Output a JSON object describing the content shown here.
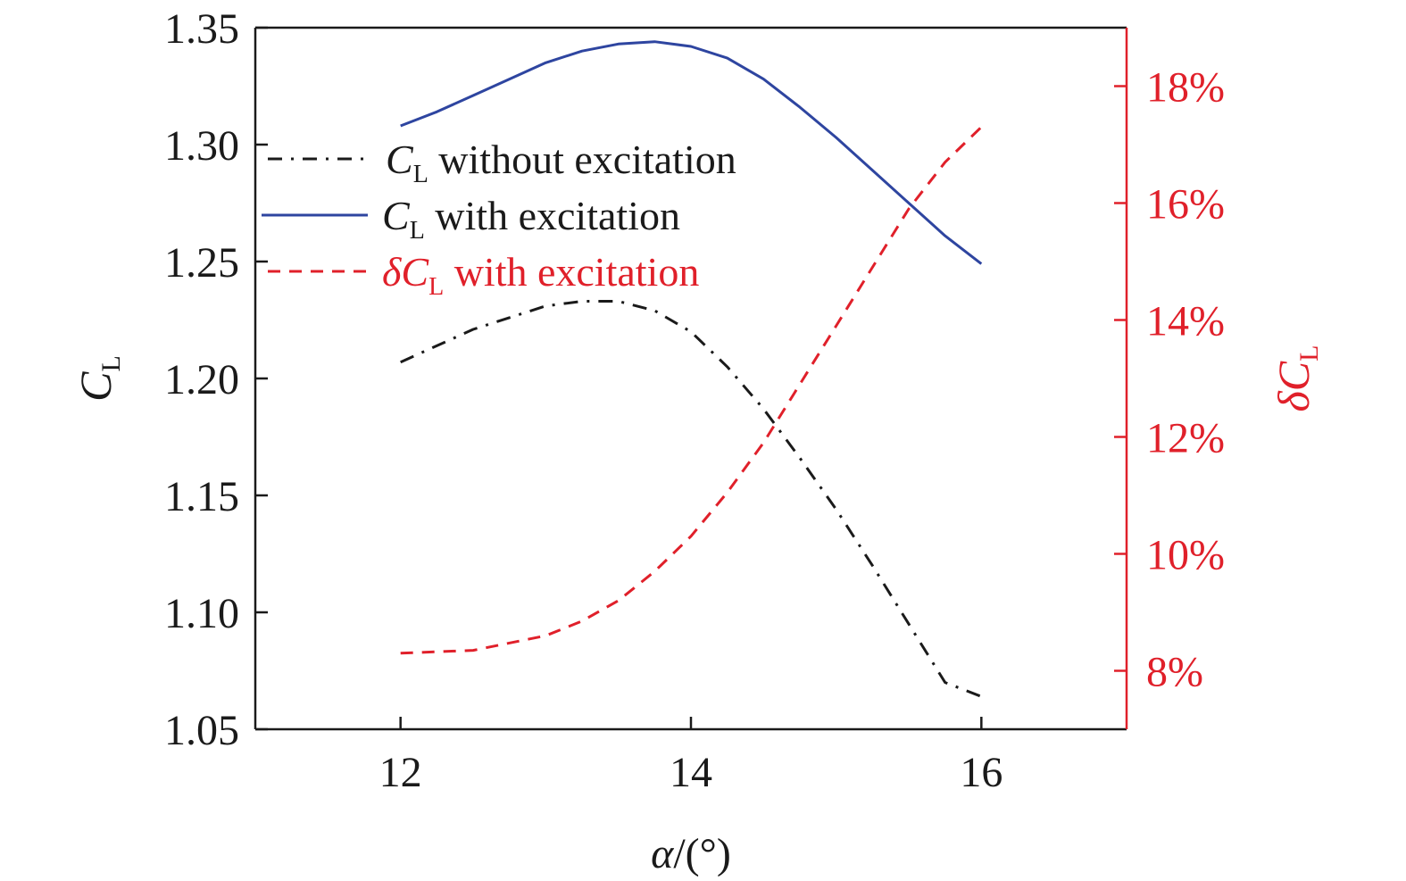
{
  "colors": {
    "axis_left": "#1a1a1a",
    "axis_right": "#e0202a",
    "series_black": "#1a1a1a",
    "series_blue": "#2e45a0",
    "series_red": "#e0202a"
  },
  "chart_data": {
    "type": "line",
    "xlim": [
      11,
      17
    ],
    "ylim_left": [
      1.05,
      1.35
    ],
    "ylim_right": [
      7,
      19
    ],
    "x_ticks": [
      {
        "v": 12,
        "label": "12"
      },
      {
        "v": 14,
        "label": "14"
      },
      {
        "v": 16,
        "label": "16"
      }
    ],
    "y_left_ticks": [
      {
        "v": 1.05,
        "label": "1.05"
      },
      {
        "v": 1.1,
        "label": "1.10"
      },
      {
        "v": 1.15,
        "label": "1.15"
      },
      {
        "v": 1.2,
        "label": "1.20"
      },
      {
        "v": 1.25,
        "label": "1.25"
      },
      {
        "v": 1.3,
        "label": "1.30"
      },
      {
        "v": 1.35,
        "label": "1.35"
      }
    ],
    "y_right_ticks": [
      {
        "v": 8,
        "label": "8%"
      },
      {
        "v": 10,
        "label": "10%"
      },
      {
        "v": 12,
        "label": "12%"
      },
      {
        "v": 14,
        "label": "14%"
      },
      {
        "v": 16,
        "label": "16%"
      },
      {
        "v": 18,
        "label": "18%"
      }
    ],
    "xlabel": {
      "main": "α",
      "rest": "/(°)"
    },
    "ylabel_left": {
      "main": "C",
      "sub": "L"
    },
    "ylabel_right": {
      "prefix": "δ",
      "main": "C",
      "sub": "L"
    },
    "grid": false,
    "legend_position": "top-left",
    "series": [
      {
        "legend_prefix": "",
        "legend_main": "C",
        "legend_sub": "L",
        "legend_rest": " without excitation",
        "axis": "left",
        "style": "dashdot",
        "color": "#1a1a1a",
        "x": [
          12,
          12.5,
          13,
          13.25,
          13.5,
          13.75,
          14,
          14.25,
          14.5,
          14.75,
          15,
          15.25,
          15.5,
          15.75,
          16
        ],
        "y": [
          1.207,
          1.221,
          1.231,
          1.233,
          1.233,
          1.229,
          1.22,
          1.205,
          1.187,
          1.166,
          1.144,
          1.12,
          1.095,
          1.07,
          1.064
        ]
      },
      {
        "legend_prefix": "",
        "legend_main": "C",
        "legend_sub": "L",
        "legend_rest": " with excitation",
        "axis": "left",
        "style": "solid",
        "color": "#2e45a0",
        "x": [
          12,
          12.25,
          12.5,
          12.75,
          13,
          13.25,
          13.5,
          13.75,
          14,
          14.25,
          14.5,
          14.75,
          15,
          15.25,
          15.5,
          15.75,
          16
        ],
        "y": [
          1.308,
          1.314,
          1.321,
          1.328,
          1.335,
          1.34,
          1.343,
          1.344,
          1.342,
          1.337,
          1.328,
          1.316,
          1.303,
          1.289,
          1.275,
          1.261,
          1.249
        ]
      },
      {
        "legend_prefix": "δ",
        "legend_main": "C",
        "legend_sub": "L",
        "legend_rest": " with excitation",
        "axis": "right",
        "style": "dashed",
        "color": "#e0202a",
        "x": [
          12,
          12.5,
          13,
          13.25,
          13.5,
          13.75,
          14,
          14.25,
          14.5,
          14.75,
          15,
          15.25,
          15.5,
          15.75,
          16
        ],
        "y": [
          8.3,
          8.35,
          8.6,
          8.85,
          9.2,
          9.7,
          10.3,
          11.05,
          11.9,
          12.9,
          13.9,
          14.9,
          15.9,
          16.7,
          17.3
        ]
      }
    ]
  }
}
